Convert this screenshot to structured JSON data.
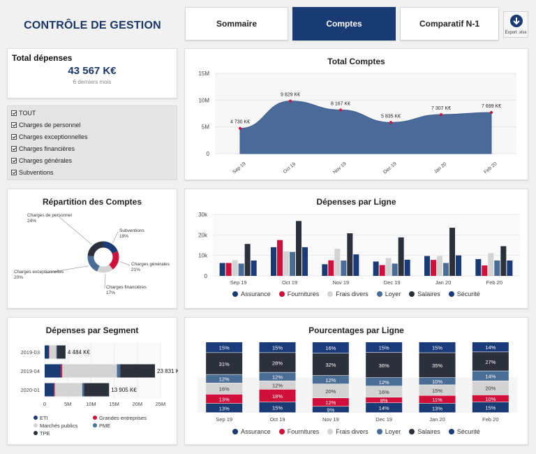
{
  "header": {
    "title": "CONTRÔLE DE GESTION",
    "tabs": [
      {
        "label": "Sommaire",
        "active": false
      },
      {
        "label": "Comptes",
        "active": true
      },
      {
        "label": "Comparatif N-1",
        "active": false
      }
    ],
    "export_label": "Export .xlsx"
  },
  "kpi": {
    "label": "Total dépenses",
    "value": "43 567 K€",
    "subtitle": "6 derniers mois"
  },
  "filters": {
    "items": [
      "TOUT",
      "Charges de personnel",
      "Charges exceptionnelles",
      "Charges financières",
      "Charges générales",
      "Subventions"
    ]
  },
  "colors": {
    "navy": "#1a3a73",
    "red": "#d0103a",
    "lightgrey": "#d3d3d3",
    "steel": "#4a6d96",
    "dark": "#2b303b",
    "blue": "#1a3a7a",
    "area": "#4a6a9a"
  },
  "total_comptes": {
    "title": "Total Comptes",
    "chart_data": {
      "type": "area",
      "x": [
        "Sep 19",
        "Oct 19",
        "Nov 19",
        "Dec 19",
        "Jan 20",
        "Feb 20"
      ],
      "values": [
        4730,
        9829,
        8167,
        5835,
        7307,
        7699
      ],
      "labels": [
        "4 730 K€",
        "9 829 K€",
        "8 167 K€",
        "5 835 K€",
        "7 307 K€",
        "7 699 K€"
      ],
      "y_ticks": [
        "15M",
        "10M",
        "5M",
        "0"
      ],
      "ylim": [
        0,
        15000
      ]
    }
  },
  "repartition": {
    "title": "Répartition des Comptes",
    "chart_data": {
      "type": "pie",
      "labels": [
        "Subventions",
        "Charges générales",
        "Charges financières",
        "Charges exceptionnelles",
        "Charges de personnel"
      ],
      "values": [
        19,
        21,
        17,
        20,
        24
      ],
      "value_labels": [
        "19%",
        "21%",
        "17%",
        "20%",
        "24%"
      ]
    }
  },
  "depenses_ligne": {
    "title": "Dépenses par Ligne",
    "chart_data": {
      "type": "bar",
      "categories": [
        "Sep 19",
        "Oct 19",
        "Nov 19",
        "Dec 19",
        "Jan 20",
        "Feb 20"
      ],
      "y_ticks": [
        "30k",
        "20k",
        "10k",
        "0"
      ],
      "ylim": [
        0,
        30000
      ],
      "series": [
        {
          "name": "Assurance",
          "values": [
            6300,
            14000,
            5700,
            7000,
            9700,
            8200
          ]
        },
        {
          "name": "Fournitures",
          "values": [
            6300,
            17500,
            7600,
            5300,
            7800,
            5100
          ]
        },
        {
          "name": "Frais divers",
          "values": [
            7700,
            12000,
            13200,
            8700,
            9700,
            11200
          ]
        },
        {
          "name": "Loyer",
          "values": [
            6000,
            11700,
            7500,
            6000,
            6300,
            7500
          ]
        },
        {
          "name": "Salaires",
          "values": [
            15600,
            26800,
            20800,
            18800,
            23500,
            14500
          ]
        },
        {
          "name": "Sécurité",
          "values": [
            7500,
            14000,
            10500,
            7900,
            10000,
            7500
          ]
        }
      ]
    }
  },
  "depenses_segment": {
    "title": "Dépenses par Segment",
    "chart_data": {
      "type": "bar",
      "orientation": "horizontal",
      "categories": [
        "2019-03",
        "2019-04",
        "2020-01"
      ],
      "x_ticks": [
        "0",
        "5M",
        "10M",
        "15M",
        "20M",
        "25M"
      ],
      "xlim": [
        0,
        25000
      ],
      "totals": [
        "4 484 K€",
        "23 831 K€",
        "13 905 K€"
      ],
      "series": [
        {
          "name": "ETI",
          "values": [
            900,
            3500,
            2000
          ]
        },
        {
          "name": "Grandes entreprises",
          "values": [
            100,
            300,
            200
          ]
        },
        {
          "name": "Marchés publics",
          "values": [
            1500,
            11800,
            5900
          ]
        },
        {
          "name": "PME",
          "values": [
            200,
            700,
            400
          ]
        },
        {
          "name": "TPE",
          "values": [
            1800,
            7500,
            5400
          ]
        }
      ]
    }
  },
  "pourcentages_ligne": {
    "title": "Pourcentages par Ligne",
    "chart_data": {
      "type": "bar",
      "stacked": "percent",
      "categories": [
        "Sep 19",
        "Oct 19",
        "Nov 19",
        "Dec 19",
        "Jan 20",
        "Feb 20"
      ],
      "series": [
        {
          "name": "Assurance",
          "values": [
            13,
            15,
            9,
            14,
            13,
            15
          ]
        },
        {
          "name": "Fournitures",
          "values": [
            13,
            18,
            12,
            8,
            11,
            10
          ]
        },
        {
          "name": "Frais divers",
          "values": [
            16,
            12,
            20,
            16,
            15,
            20
          ]
        },
        {
          "name": "Loyer",
          "values": [
            12,
            12,
            12,
            12,
            10,
            14
          ]
        },
        {
          "name": "Salaires",
          "values": [
            31,
            28,
            32,
            36,
            35,
            27
          ]
        },
        {
          "name": "Sécurité",
          "values": [
            15,
            15,
            16,
            15,
            15,
            14
          ]
        }
      ]
    }
  },
  "legend": {
    "items": [
      "Assurance",
      "Fournitures",
      "Frais divers",
      "Loyer",
      "Salaires",
      "Sécurité"
    ]
  }
}
